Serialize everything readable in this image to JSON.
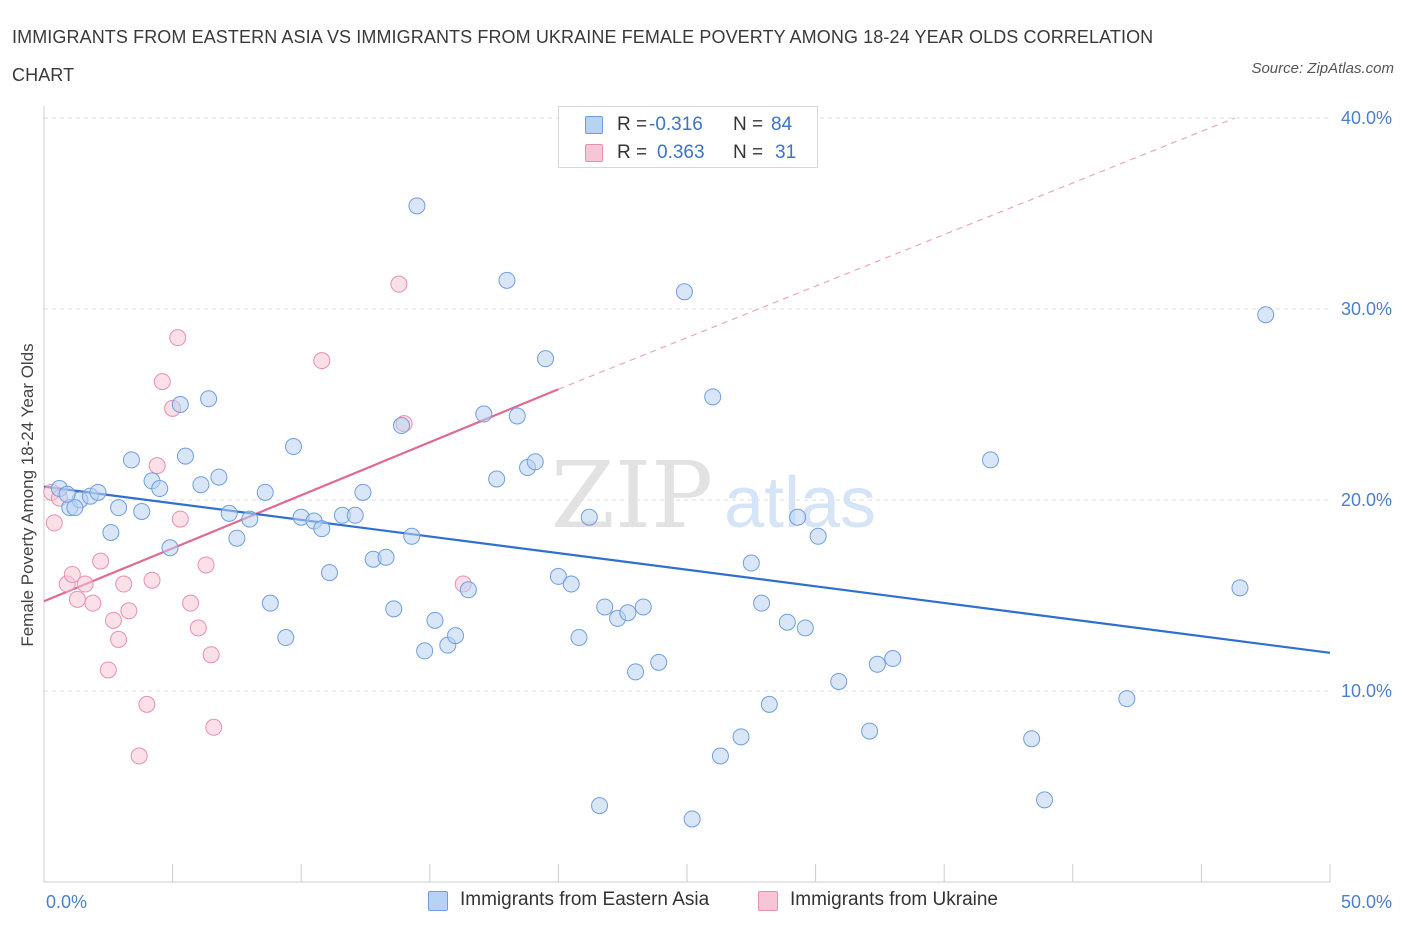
{
  "header": {
    "title": "IMMIGRANTS FROM EASTERN ASIA VS IMMIGRANTS FROM UKRAINE FEMALE POVERTY AMONG 18-24 YEAR OLDS CORRELATION CHART",
    "source": "Source: ZipAtlas.com"
  },
  "watermark": {
    "zip": "ZIP",
    "atlas": "atlas"
  },
  "legend": {
    "rows": [
      {
        "r_label": "R =",
        "r_value": "-0.316",
        "n_label": "N =",
        "n_value": "84"
      },
      {
        "r_label": "R =",
        "r_value": "0.363",
        "n_label": "N =",
        "n_value": "31"
      }
    ]
  },
  "chart_data": {
    "type": "scatter",
    "title": "IMMIGRANTS FROM EASTERN ASIA VS IMMIGRANTS FROM UKRAINE FEMALE POVERTY AMONG 18-24 YEAR OLDS CORRELATION CHART",
    "xlabel": "",
    "ylabel": "Female Poverty Among 18-24 Year Olds",
    "xlim": [
      0,
      50
    ],
    "ylim": [
      0,
      40
    ],
    "x_tick_labels": [
      "0.0%",
      "50.0%"
    ],
    "y_tick_labels": [
      "10.0%",
      "20.0%",
      "30.0%",
      "40.0%"
    ],
    "y_ticks": [
      10,
      20,
      30,
      40
    ],
    "grid": true,
    "legend_position": "bottom-center",
    "colors": {
      "eastern_asia_fill": "#b8d2f3",
      "eastern_asia_stroke": "#6f9ee0",
      "eastern_asia_line": "#2f6fd0",
      "ukraine_fill": "#f7c6d6",
      "ukraine_stroke": "#ea8fae",
      "ukraine_line": "#e06a93",
      "axis_text": "#4a7fd0"
    },
    "series": [
      {
        "name": "Immigrants from Eastern Asia",
        "trend": {
          "x": [
            0,
            50
          ],
          "y": [
            20.7,
            12.0
          ]
        },
        "points": [
          [
            0.6,
            20.6
          ],
          [
            1.0,
            19.6
          ],
          [
            1.4,
            20.0
          ],
          [
            1.8,
            20.2
          ],
          [
            2.1,
            20.4
          ],
          [
            2.6,
            18.3
          ],
          [
            2.9,
            19.6
          ],
          [
            3.4,
            22.1
          ],
          [
            3.8,
            19.4
          ],
          [
            4.2,
            21.0
          ],
          [
            4.5,
            20.6
          ],
          [
            4.9,
            17.5
          ],
          [
            5.3,
            25.0
          ],
          [
            5.5,
            22.3
          ],
          [
            6.1,
            20.8
          ],
          [
            6.4,
            25.3
          ],
          [
            6.8,
            21.2
          ],
          [
            7.2,
            19.3
          ],
          [
            7.5,
            18.0
          ],
          [
            8.0,
            19.0
          ],
          [
            8.6,
            20.4
          ],
          [
            8.8,
            14.6
          ],
          [
            9.4,
            12.8
          ],
          [
            9.7,
            22.8
          ],
          [
            10.0,
            19.1
          ],
          [
            10.5,
            18.9
          ],
          [
            10.8,
            18.5
          ],
          [
            11.1,
            16.2
          ],
          [
            11.6,
            19.2
          ],
          [
            12.1,
            19.2
          ],
          [
            12.4,
            20.4
          ],
          [
            12.8,
            16.9
          ],
          [
            13.3,
            17.0
          ],
          [
            13.6,
            14.3
          ],
          [
            13.9,
            23.9
          ],
          [
            14.3,
            18.1
          ],
          [
            14.8,
            12.1
          ],
          [
            15.2,
            13.7
          ],
          [
            15.7,
            12.4
          ],
          [
            16.0,
            12.9
          ],
          [
            14.5,
            35.4
          ],
          [
            16.5,
            15.3
          ],
          [
            17.1,
            24.5
          ],
          [
            17.6,
            21.1
          ],
          [
            18.0,
            31.5
          ],
          [
            18.4,
            24.4
          ],
          [
            18.8,
            21.7
          ],
          [
            19.1,
            22.0
          ],
          [
            19.5,
            27.4
          ],
          [
            20.0,
            16.0
          ],
          [
            20.5,
            15.6
          ],
          [
            20.8,
            12.8
          ],
          [
            21.2,
            19.1
          ],
          [
            21.6,
            4.0
          ],
          [
            21.8,
            14.4
          ],
          [
            22.3,
            13.8
          ],
          [
            22.7,
            14.1
          ],
          [
            23.0,
            11.0
          ],
          [
            23.3,
            14.4
          ],
          [
            23.9,
            11.5
          ],
          [
            24.9,
            30.9
          ],
          [
            25.2,
            3.3
          ],
          [
            26.0,
            25.4
          ],
          [
            26.3,
            6.6
          ],
          [
            27.1,
            7.6
          ],
          [
            27.5,
            16.7
          ],
          [
            27.9,
            14.6
          ],
          [
            28.2,
            9.3
          ],
          [
            28.9,
            13.6
          ],
          [
            29.3,
            19.1
          ],
          [
            29.6,
            13.3
          ],
          [
            30.1,
            18.1
          ],
          [
            30.9,
            10.5
          ],
          [
            32.1,
            7.9
          ],
          [
            32.4,
            11.4
          ],
          [
            33.0,
            11.7
          ],
          [
            36.8,
            22.1
          ],
          [
            38.4,
            7.5
          ],
          [
            38.9,
            4.3
          ],
          [
            42.1,
            9.6
          ],
          [
            46.5,
            15.4
          ],
          [
            47.5,
            29.7
          ],
          [
            1.2,
            19.6
          ],
          [
            0.9,
            20.3
          ]
        ]
      },
      {
        "name": "Immigrants from Ukraine",
        "trend": {
          "x": [
            0,
            20
          ],
          "y": [
            14.7,
            25.8
          ]
        },
        "trend_extension": {
          "x": [
            20,
            46.3
          ],
          "y": [
            25.8,
            40.0
          ]
        },
        "points": [
          [
            0.3,
            20.4
          ],
          [
            0.4,
            18.8
          ],
          [
            0.6,
            20.1
          ],
          [
            0.9,
            15.6
          ],
          [
            1.1,
            16.1
          ],
          [
            1.3,
            14.8
          ],
          [
            1.6,
            15.6
          ],
          [
            1.9,
            14.6
          ],
          [
            2.2,
            16.8
          ],
          [
            2.5,
            11.1
          ],
          [
            2.7,
            13.7
          ],
          [
            2.9,
            12.7
          ],
          [
            3.1,
            15.6
          ],
          [
            3.3,
            14.2
          ],
          [
            3.7,
            6.6
          ],
          [
            4.0,
            9.3
          ],
          [
            4.2,
            15.8
          ],
          [
            4.4,
            21.8
          ],
          [
            4.6,
            26.2
          ],
          [
            5.0,
            24.8
          ],
          [
            5.2,
            28.5
          ],
          [
            5.3,
            19.0
          ],
          [
            5.7,
            14.6
          ],
          [
            6.0,
            13.3
          ],
          [
            6.3,
            16.6
          ],
          [
            6.5,
            11.9
          ],
          [
            6.6,
            8.1
          ],
          [
            10.8,
            27.3
          ],
          [
            13.8,
            31.3
          ],
          [
            14.0,
            24.0
          ],
          [
            16.3,
            15.6
          ]
        ]
      }
    ]
  }
}
